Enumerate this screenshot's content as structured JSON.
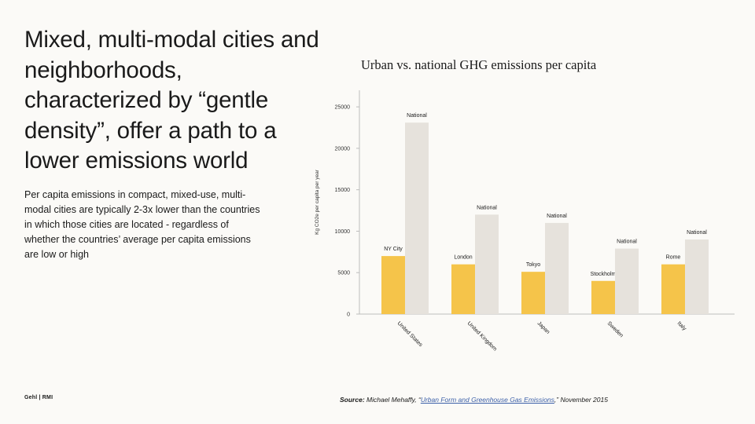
{
  "slide": {
    "headline": "Mixed, multi-modal cities and neighborhoods, characterized by “gentle density”, offer a path to a lower emissions world",
    "body": "Per capita emissions in compact, mixed-use, multi-modal cities are typically 2-3x lower than the countries in which those cities are located - regardless of whether the countries’ average per capita emissions are low or high",
    "footer_brand": "Gehl | RMI",
    "source": {
      "label": "Source:",
      "prefix": " Michael Mehaffy, “",
      "link_text": "Urban Form and Greenhouse Gas Emissions",
      "suffix": ",” November 2015"
    }
  },
  "chart_data": {
    "type": "bar",
    "title": "Urban vs. national GHG emissions per capita",
    "ylabel": "Kg CO2e per capita per year",
    "xlabel": "",
    "ylim": [
      0,
      27000
    ],
    "yticks": [
      0,
      5000,
      10000,
      15000,
      20000,
      25000
    ],
    "grid": false,
    "categories": [
      "United States",
      "United Kingdom",
      "Japan",
      "Sweden",
      "Italy"
    ],
    "series": [
      {
        "name": "City",
        "color": "#f5c44a",
        "labels": [
          "NY City",
          "London",
          "Tokyo",
          "Stockholm",
          "Rome"
        ],
        "values": [
          7000,
          6000,
          5100,
          4000,
          6000
        ]
      },
      {
        "name": "National",
        "color": "#e6e2dc",
        "labels": [
          "National",
          "National",
          "National",
          "National",
          "National"
        ],
        "values": [
          23100,
          12000,
          11000,
          7900,
          9000
        ]
      }
    ]
  }
}
